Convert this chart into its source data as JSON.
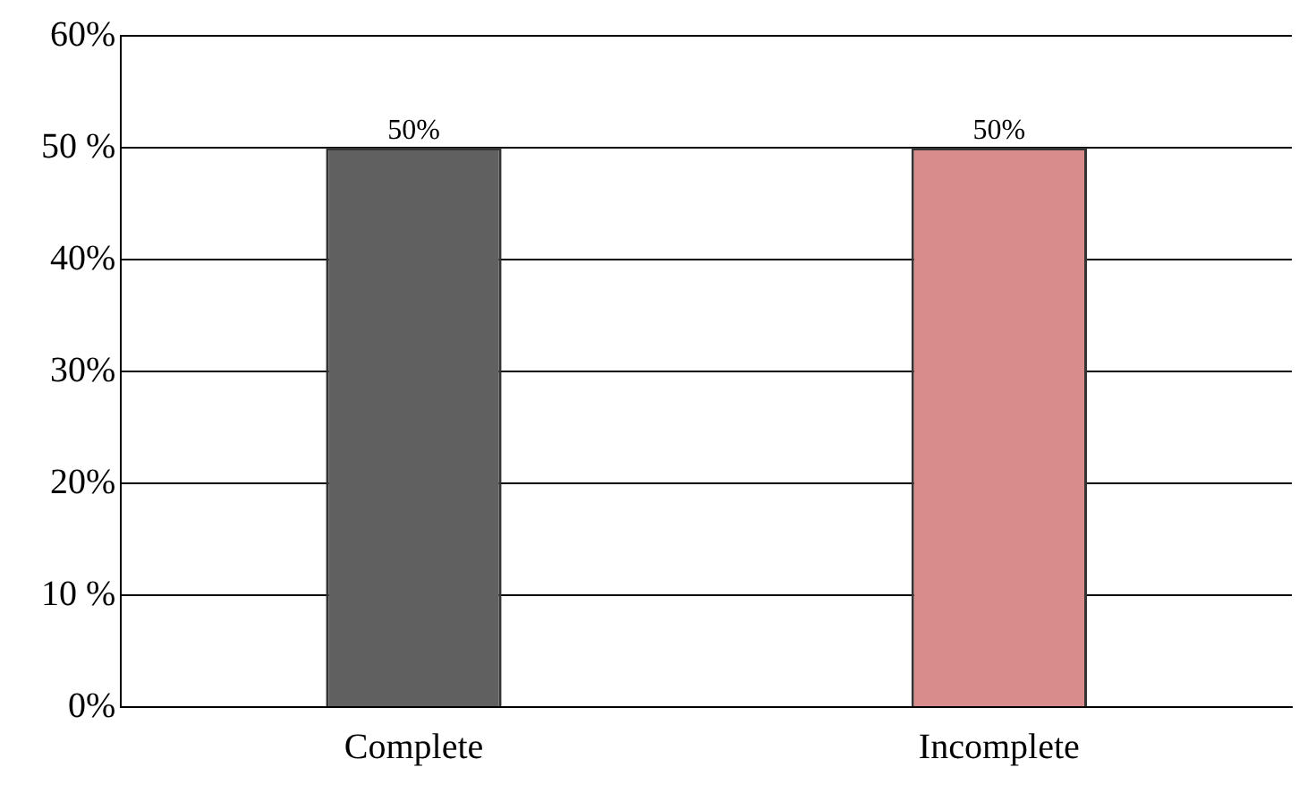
{
  "chart_data": {
    "type": "bar",
    "categories": [
      "Complete",
      "Incomplete"
    ],
    "values": [
      50,
      50
    ],
    "colors": [
      "#606060",
      "#d98c8c"
    ],
    "value_labels": [
      "50%",
      "50%"
    ],
    "ylim": [
      0,
      60
    ],
    "yticks": [
      {
        "value": 0,
        "label": "0%"
      },
      {
        "value": 10,
        "label": "10 %"
      },
      {
        "value": 20,
        "label": "20%"
      },
      {
        "value": 30,
        "label": "30%"
      },
      {
        "value": 40,
        "label": "40%"
      },
      {
        "value": 50,
        "label": "50 %"
      },
      {
        "value": 60,
        "label": "60%"
      }
    ],
    "grid": "y",
    "legend": false
  }
}
